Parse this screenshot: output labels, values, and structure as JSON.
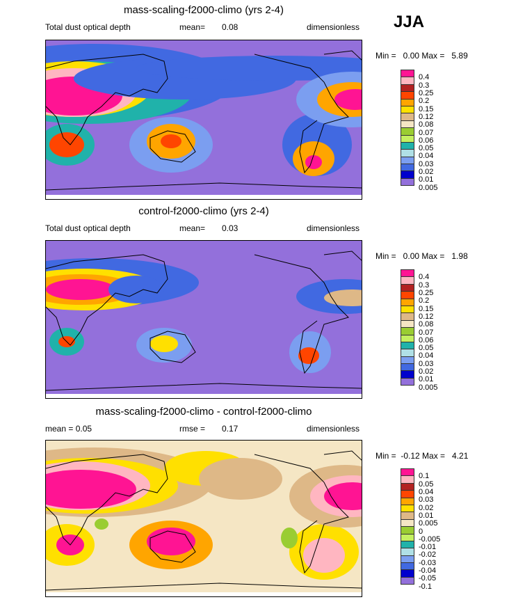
{
  "season": "JJA",
  "panels": [
    {
      "title": "mass-scaling-f2000-climo (yrs 2-4)",
      "left_label": "Total dust optical depth",
      "mean_label": "mean=",
      "mean_value": "0.08",
      "units": "dimensionless",
      "minmax": "Min =   0.00 Max =   5.89",
      "background": "#9370DB",
      "levels": [
        "0.4",
        "0.3",
        "0.25",
        "0.2",
        "0.15",
        "0.12",
        "0.08",
        "0.07",
        "0.06",
        "0.05",
        "0.04",
        "0.03",
        "0.02",
        "0.01",
        "0.005"
      ]
    },
    {
      "title": "control-f2000-climo (yrs 2-4)",
      "left_label": "Total dust optical depth",
      "mean_label": "mean=",
      "mean_value": "0.03",
      "units": "dimensionless",
      "minmax": "Min =   0.00 Max =   1.98",
      "background": "#9370DB",
      "levels": [
        "0.4",
        "0.3",
        "0.25",
        "0.2",
        "0.15",
        "0.12",
        "0.08",
        "0.07",
        "0.06",
        "0.05",
        "0.04",
        "0.03",
        "0.02",
        "0.01",
        "0.005"
      ]
    },
    {
      "title": "mass-scaling-f2000-climo - control-f2000-climo",
      "left_label": "mean =   0.05",
      "mean_label": "rmse =",
      "mean_value": "0.17",
      "units": "dimensionless",
      "minmax": "Min =  -0.12 Max =   4.21",
      "background": "#F5E6C4",
      "levels": [
        "0.1",
        "0.05",
        "0.04",
        "0.03",
        "0.02",
        "0.01",
        "0.005",
        "0",
        "-0.005",
        "-0.01",
        "-0.02",
        "-0.03",
        "-0.04",
        "-0.05",
        "-0.1"
      ]
    }
  ],
  "colors": [
    "#FF1493",
    "#FFB6C1",
    "#B22222",
    "#FF4500",
    "#FFA500",
    "#FFE000",
    "#DEB887",
    "#F5E6C4",
    "#9ACD32",
    "#C4F060",
    "#20B2AA",
    "#B0E0E6",
    "#7B9EF0",
    "#4169E1",
    "#0000CD",
    "#9370DB"
  ],
  "chart_data": {
    "type": "heatmap",
    "title": "JJA total dust optical depth",
    "maps": [
      {
        "name": "mass-scaling-f2000-climo (yrs 2-4)",
        "mean": 0.08,
        "min": 0.0,
        "max": 5.89
      },
      {
        "name": "control-f2000-climo (yrs 2-4)",
        "mean": 0.03,
        "min": 0.0,
        "max": 1.98
      },
      {
        "name": "mass-scaling-f2000-climo - control-f2000-climo",
        "mean": 0.05,
        "rmse": 0.17,
        "min": -0.12,
        "max": 4.21
      }
    ]
  }
}
